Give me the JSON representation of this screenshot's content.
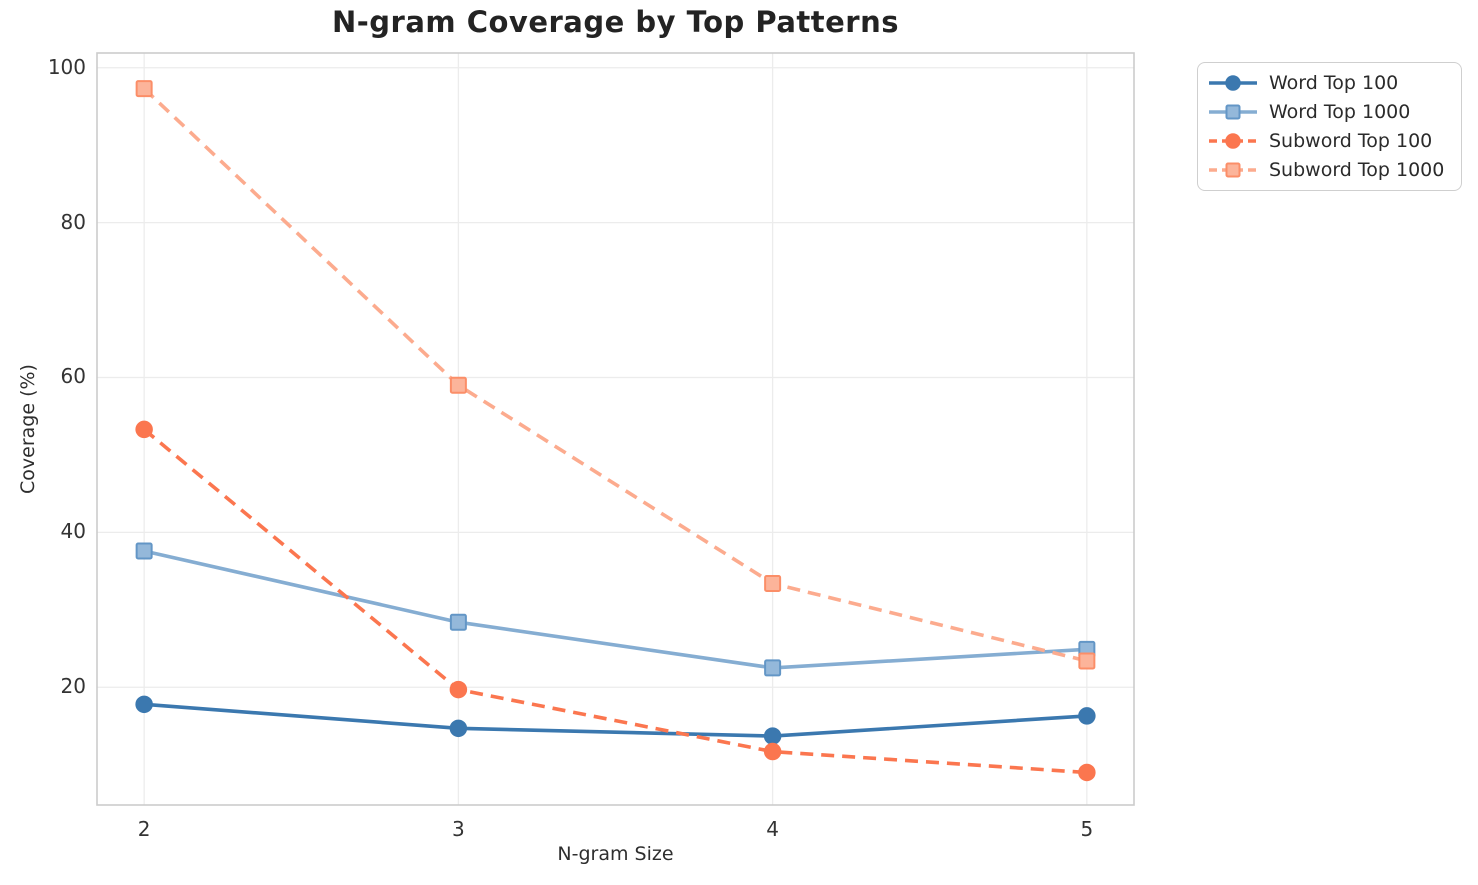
{
  "chart_data": {
    "type": "line",
    "title": "N-gram Coverage by Top Patterns",
    "xlabel": "N-gram Size",
    "ylabel": "Coverage (%)",
    "x": [
      2,
      3,
      4,
      5
    ],
    "xticks": [
      2,
      3,
      4,
      5
    ],
    "yticks": [
      20,
      40,
      60,
      80,
      100
    ],
    "xlim": [
      1.85,
      5.15
    ],
    "ylim": [
      4.8,
      101.9
    ],
    "grid": true,
    "grid_color": "#ececec",
    "spine_color": "#cccccc",
    "background": "#ffffff",
    "legend_position": "upper right, outside plot",
    "series": [
      {
        "name": "Word Top 100",
        "values": [
          17.8,
          14.7,
          13.7,
          16.3
        ],
        "color": "#3b78af",
        "marker": "circle",
        "marker_fill": "#3b78af",
        "marker_edge": "#3b78af",
        "line_style": "solid"
      },
      {
        "name": "Word Top 1000",
        "values": [
          37.6,
          28.4,
          22.5,
          24.9
        ],
        "color": "#85add2",
        "marker": "square",
        "marker_fill": "#94b8da",
        "marker_edge": "#6396c6",
        "line_style": "solid"
      },
      {
        "name": "Subword Top 100",
        "values": [
          53.3,
          19.7,
          11.7,
          9.0
        ],
        "color": "#fb764f",
        "marker": "circle",
        "marker_fill": "#fb764f",
        "marker_edge": "#fb764f",
        "line_style": "dashed"
      },
      {
        "name": "Subword Top 1000",
        "values": [
          97.3,
          59.0,
          33.4,
          23.4
        ],
        "color": "#fcab8e",
        "marker": "square",
        "marker_fill": "#fcb49a",
        "marker_edge": "#fb8e68",
        "line_style": "dashed"
      }
    ]
  }
}
